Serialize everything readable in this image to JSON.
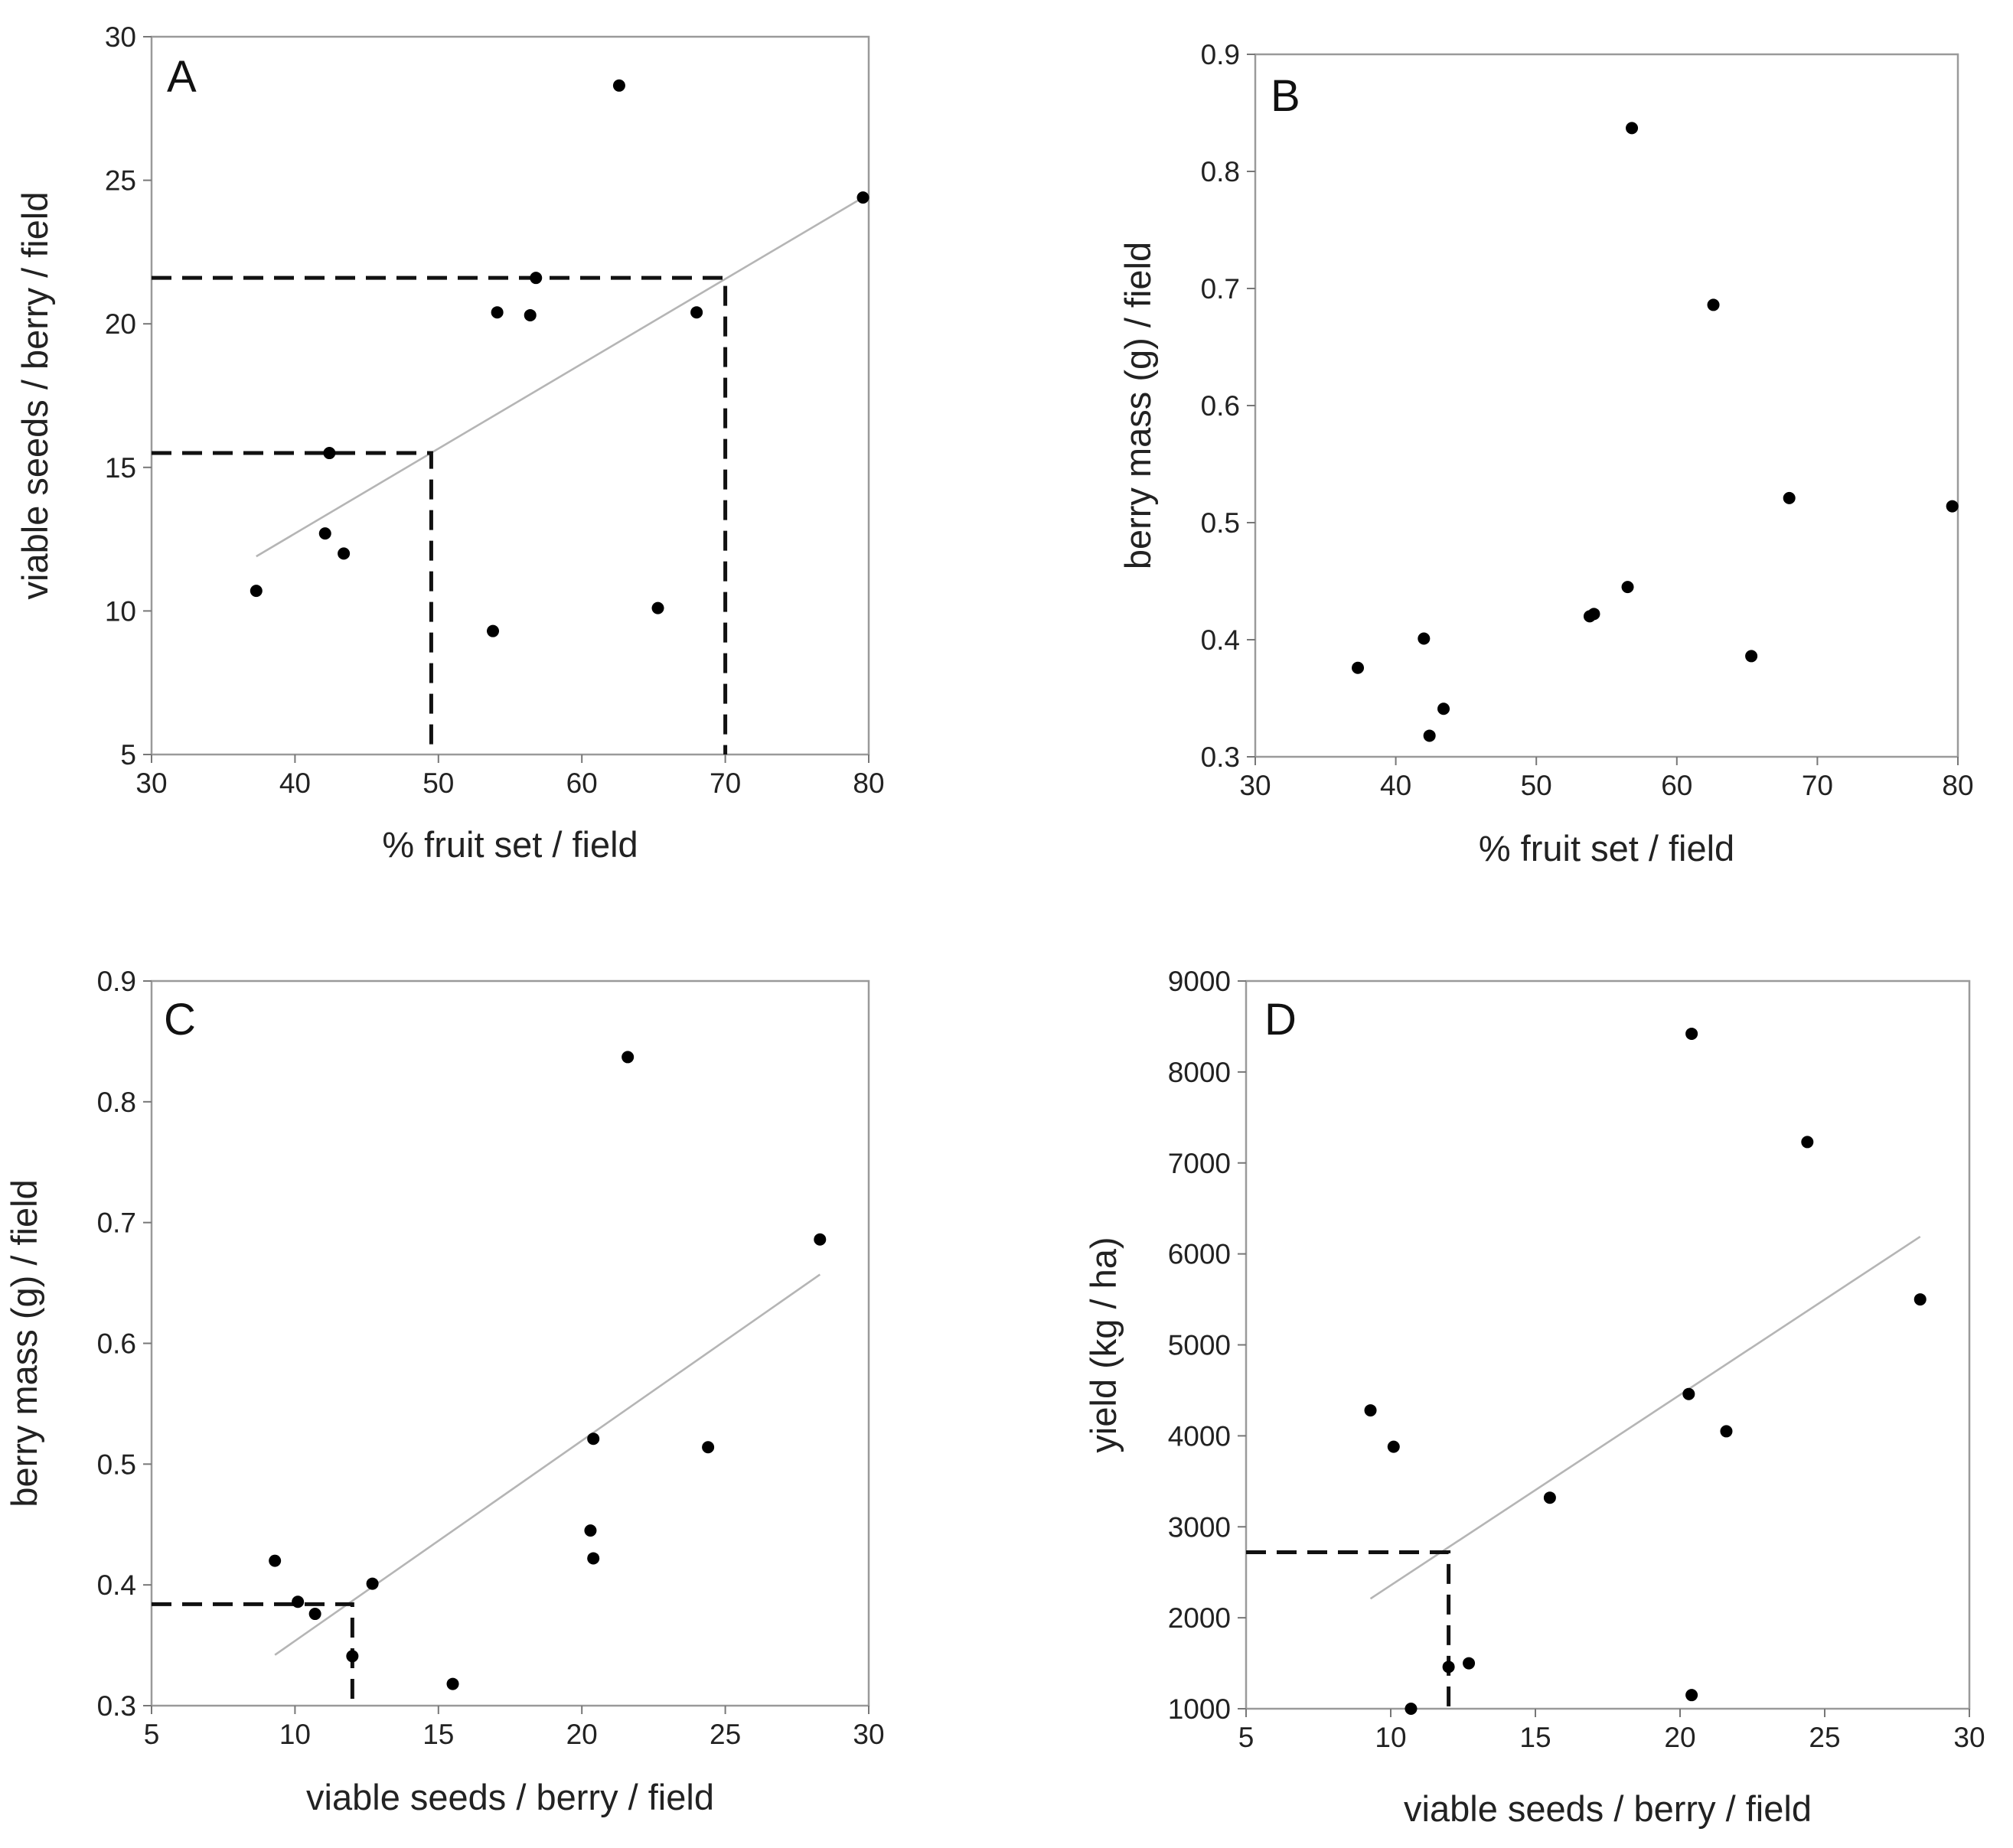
{
  "chart_data": [
    {
      "panel": "A",
      "type": "scatter",
      "xlabel": "% fruit set / field",
      "ylabel": "viable seeds / berry / field",
      "xlim": [
        30,
        80
      ],
      "ylim": [
        5,
        30
      ],
      "xticks": [
        30,
        40,
        50,
        60,
        70,
        80
      ],
      "yticks": [
        5,
        10,
        15,
        20,
        25,
        30
      ],
      "points": [
        {
          "x": 37.3,
          "y": 10.7
        },
        {
          "x": 42.1,
          "y": 12.7
        },
        {
          "x": 42.4,
          "y": 15.5
        },
        {
          "x": 43.4,
          "y": 12.0
        },
        {
          "x": 53.8,
          "y": 9.3
        },
        {
          "x": 54.1,
          "y": 20.4
        },
        {
          "x": 56.4,
          "y": 20.3
        },
        {
          "x": 56.8,
          "y": 21.6
        },
        {
          "x": 62.6,
          "y": 28.3
        },
        {
          "x": 65.3,
          "y": 10.1
        },
        {
          "x": 68.0,
          "y": 20.4
        },
        {
          "x": 79.6,
          "y": 24.4
        }
      ],
      "fit_line": {
        "x": [
          37.3,
          79.6
        ],
        "y": [
          11.9,
          24.4
        ]
      },
      "guides": [
        {
          "x": 49.5,
          "y": 15.5
        },
        {
          "x": 70.0,
          "y": 21.6
        }
      ]
    },
    {
      "panel": "B",
      "type": "scatter",
      "xlabel": "% fruit set / field",
      "ylabel": "berry mass (g) / field",
      "xlim": [
        30,
        80
      ],
      "ylim": [
        0.3,
        0.9
      ],
      "xticks": [
        30,
        40,
        50,
        60,
        70,
        80
      ],
      "yticks": [
        "0.3",
        "0.4",
        "0.5",
        "0.6",
        "0.7",
        "0.8",
        "0.9"
      ],
      "points": [
        {
          "x": 37.3,
          "y": 0.376
        },
        {
          "x": 42.0,
          "y": 0.401
        },
        {
          "x": 42.4,
          "y": 0.318
        },
        {
          "x": 43.4,
          "y": 0.341
        },
        {
          "x": 53.8,
          "y": 0.42
        },
        {
          "x": 54.1,
          "y": 0.422
        },
        {
          "x": 56.5,
          "y": 0.445
        },
        {
          "x": 56.8,
          "y": 0.837
        },
        {
          "x": 62.6,
          "y": 0.686
        },
        {
          "x": 65.3,
          "y": 0.386
        },
        {
          "x": 68.0,
          "y": 0.521
        },
        {
          "x": 79.6,
          "y": 0.514
        }
      ],
      "fit_line": null,
      "guides": []
    },
    {
      "panel": "C",
      "type": "scatter",
      "xlabel": "viable seeds / berry / field",
      "ylabel": "berry mass (g) / field",
      "xlim": [
        5,
        30
      ],
      "ylim": [
        0.3,
        0.9
      ],
      "xticks": [
        5,
        10,
        15,
        20,
        25,
        30
      ],
      "yticks": [
        "0.3",
        "0.4",
        "0.5",
        "0.6",
        "0.7",
        "0.8",
        "0.9"
      ],
      "points": [
        {
          "x": 9.3,
          "y": 0.42
        },
        {
          "x": 10.1,
          "y": 0.386
        },
        {
          "x": 10.7,
          "y": 0.376
        },
        {
          "x": 12.0,
          "y": 0.341
        },
        {
          "x": 12.7,
          "y": 0.401
        },
        {
          "x": 15.5,
          "y": 0.318
        },
        {
          "x": 20.3,
          "y": 0.445
        },
        {
          "x": 20.4,
          "y": 0.521
        },
        {
          "x": 20.4,
          "y": 0.422
        },
        {
          "x": 21.6,
          "y": 0.837
        },
        {
          "x": 24.4,
          "y": 0.514
        },
        {
          "x": 28.3,
          "y": 0.686
        }
      ],
      "fit_line": {
        "x": [
          9.3,
          28.3
        ],
        "y": [
          0.342,
          0.657
        ]
      },
      "guides": [
        {
          "x": 12.0,
          "y": 0.384
        }
      ]
    },
    {
      "panel": "D",
      "type": "scatter",
      "xlabel": "viable seeds / berry / field",
      "ylabel": "yield (kg / ha)",
      "xlim": [
        5,
        30
      ],
      "ylim": [
        1000,
        9000
      ],
      "xticks": [
        5,
        10,
        15,
        20,
        25,
        30
      ],
      "yticks": [
        1000,
        2000,
        3000,
        4000,
        5000,
        6000,
        7000,
        8000,
        9000
      ],
      "points": [
        {
          "x": 9.3,
          "y": 4280
        },
        {
          "x": 10.1,
          "y": 3880
        },
        {
          "x": 10.7,
          "y": 1000
        },
        {
          "x": 12.0,
          "y": 1460
        },
        {
          "x": 12.7,
          "y": 1500
        },
        {
          "x": 15.5,
          "y": 3320
        },
        {
          "x": 20.3,
          "y": 4460
        },
        {
          "x": 20.4,
          "y": 8420
        },
        {
          "x": 20.4,
          "y": 1150
        },
        {
          "x": 21.6,
          "y": 4050
        },
        {
          "x": 24.4,
          "y": 7230
        },
        {
          "x": 28.3,
          "y": 5500
        }
      ],
      "fit_line": {
        "x": [
          9.3,
          28.3
        ],
        "y": [
          2210,
          6190
        ]
      },
      "guides": [
        {
          "x": 12.0,
          "y": 2720
        }
      ]
    }
  ]
}
